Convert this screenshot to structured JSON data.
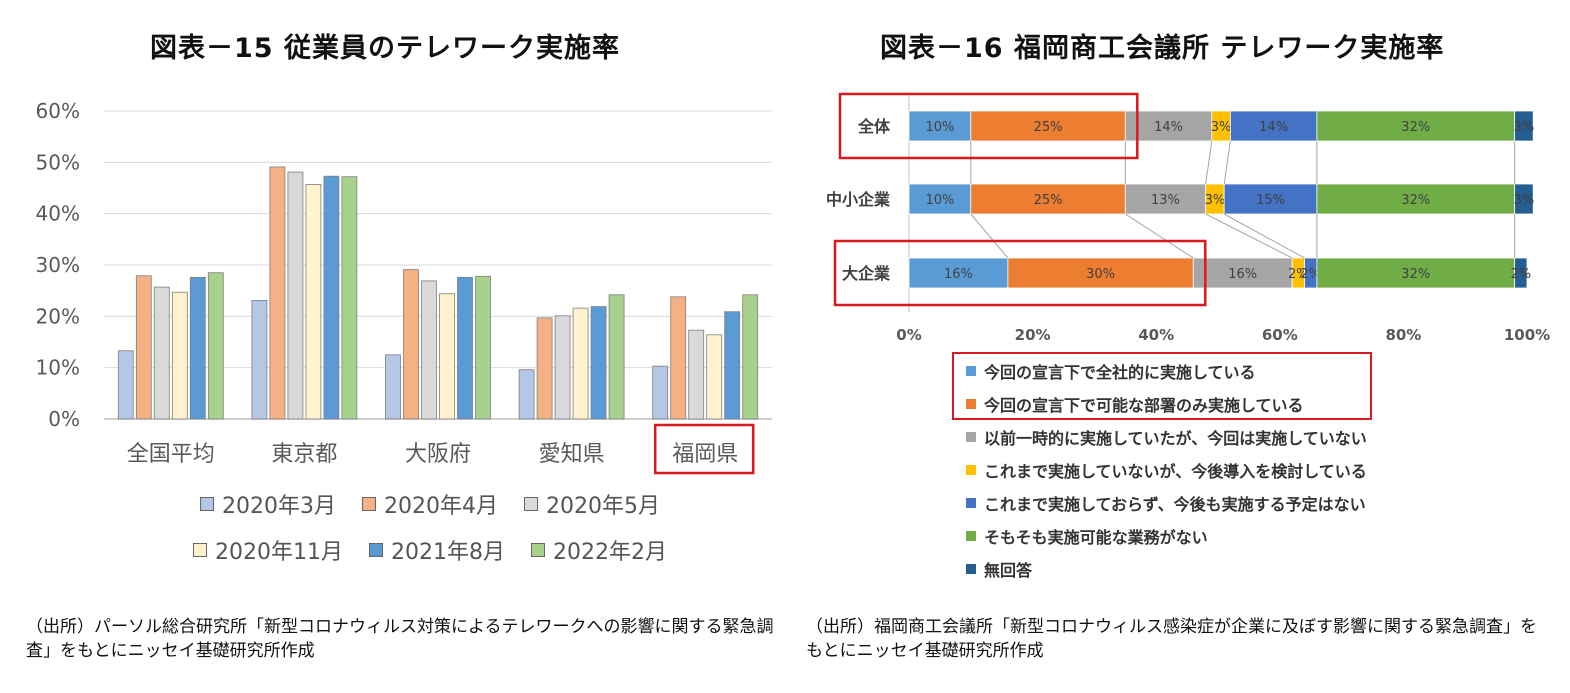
{
  "left": {
    "title": "図表－15  従業員のテレワーク実施率",
    "source": "（出所）パーソル総合研究所「新型コロナウィルス対策によるテレワークへの影響に関する緊急調査」をもとにニッセイ基礎研究所作成"
  },
  "right": {
    "title": "図表－16 福岡商工会議所  テレワーク実施率",
    "source": "（出所）福岡商工会議所「新型コロナウィルス感染症が企業に及ぼす影響に関する緊急調査」をもとにニッセイ基礎研究所作成"
  },
  "chart_data": [
    {
      "type": "bar",
      "title": "図表－15  従業員のテレワーク実施率",
      "categories": [
        "全国平均",
        "東京都",
        "大阪府",
        "愛知県",
        "福岡県"
      ],
      "series": [
        {
          "name": "2020年3月",
          "color": "#b4c7e7",
          "values": [
            13.3,
            23.1,
            12.5,
            9.6,
            10.3
          ]
        },
        {
          "name": "2020年4月",
          "color": "#f4b183",
          "values": [
            27.9,
            49.1,
            29.1,
            19.7,
            23.8
          ]
        },
        {
          "name": "2020年5月",
          "color": "#d9d9d9",
          "values": [
            25.7,
            48.1,
            26.9,
            20.1,
            17.3
          ]
        },
        {
          "name": "2020年11月",
          "color": "#fff2cc",
          "values": [
            24.7,
            45.7,
            24.4,
            21.6,
            16.4
          ]
        },
        {
          "name": "2021年8月",
          "color": "#5b9bd5",
          "values": [
            27.6,
            47.3,
            27.6,
            21.9,
            20.9
          ]
        },
        {
          "name": "2022年2月",
          "color": "#a9d18e",
          "values": [
            28.5,
            47.2,
            27.8,
            24.2,
            24.2
          ]
        }
      ],
      "yticks": [
        "0%",
        "10%",
        "20%",
        "30%",
        "40%",
        "50%",
        "60%"
      ],
      "ylim": [
        0,
        60
      ],
      "grid": true,
      "legend": "bottom",
      "highlight_category": "福岡県"
    },
    {
      "type": "bar",
      "orientation": "horizontal-stacked-100",
      "title": "図表－16 福岡商工会議所  テレワーク実施率",
      "categories": [
        "全体",
        "中小企業",
        "大企業"
      ],
      "series": [
        {
          "name": "今回の宣言下で全社的に実施している",
          "color": "#5b9bd5",
          "values": [
            10,
            10,
            16
          ],
          "labels": [
            "10%",
            "10%",
            "16%"
          ]
        },
        {
          "name": "今回の宣言下で可能な部署のみ実施している",
          "color": "#ed7d31",
          "values": [
            25,
            25,
            30
          ],
          "labels": [
            "25%",
            "25%",
            "30%"
          ]
        },
        {
          "name": "以前一時的に実施していたが、今回は実施していない",
          "color": "#a5a5a5",
          "values": [
            14,
            13,
            16
          ],
          "labels": [
            "14%",
            "13%",
            "16%"
          ]
        },
        {
          "name": "これまで実施していないが、今後導入を検討している",
          "color": "#ffc000",
          "values": [
            3,
            3,
            2
          ],
          "labels": [
            "3%",
            "3%",
            "2%"
          ]
        },
        {
          "name": "これまで実施しておらず、今後も実施する予定はない",
          "color": "#4472c4",
          "values": [
            14,
            15,
            2
          ],
          "labels": [
            "14%",
            "15%",
            "2%"
          ]
        },
        {
          "name": "そもそも実施可能な業務がない",
          "color": "#70ad47",
          "values": [
            32,
            32,
            32
          ],
          "labels": [
            "32%",
            "32%",
            "32%"
          ]
        },
        {
          "name": "無回答",
          "color": "#255e91",
          "values": [
            3,
            3,
            2
          ],
          "labels": [
            "3%",
            "3%",
            "2%"
          ]
        }
      ],
      "xticks": [
        "0%",
        "20%",
        "40%",
        "60%",
        "80%",
        "100%"
      ],
      "xlim": [
        0,
        100
      ],
      "legend": "bottom",
      "highlight_categories": [
        "全体",
        "大企業"
      ],
      "highlight_legend": [
        "今回の宣言下で全社的に実施している",
        "今回の宣言下で可能な部署のみ実施している"
      ]
    }
  ]
}
